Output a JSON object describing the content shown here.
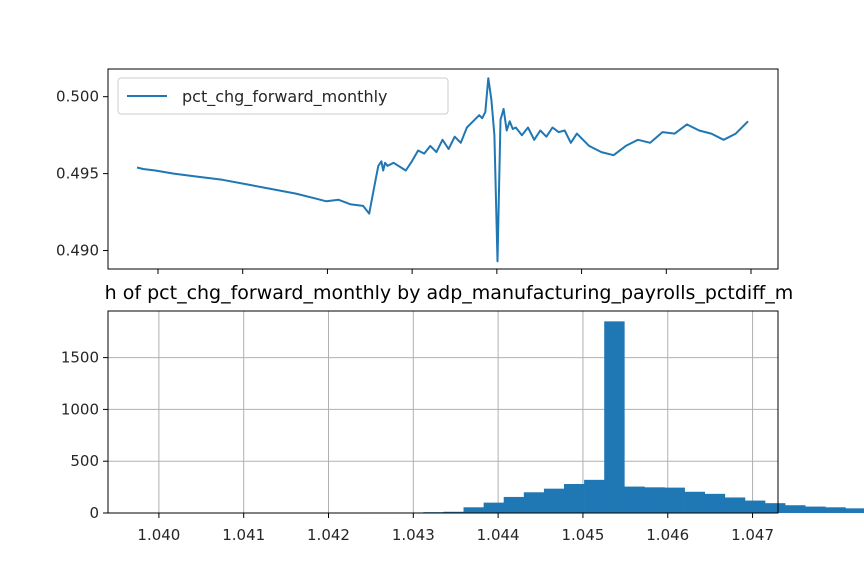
{
  "chart_data": [
    {
      "type": "line",
      "title": "",
      "xlabel": "",
      "ylabel": "",
      "ylim": [
        0.4888,
        0.5018
      ],
      "yticks": [
        0.49,
        0.495,
        0.5
      ],
      "ytick_labels": [
        "0.490",
        "0.495",
        "0.500"
      ],
      "xtick_count": 8,
      "grid": false,
      "legend": {
        "placement": "top-left",
        "entries": [
          "pct_chg_forward_monthly"
        ]
      },
      "series": [
        {
          "name": "pct_chg_forward_monthly",
          "color": "#1f77b4",
          "x": [
            0,
            0.01,
            0.03,
            0.06,
            0.1,
            0.14,
            0.18,
            0.22,
            0.26,
            0.29,
            0.31,
            0.33,
            0.35,
            0.37,
            0.38,
            0.39,
            0.395,
            0.4,
            0.403,
            0.406,
            0.41,
            0.42,
            0.44,
            0.45,
            0.46,
            0.47,
            0.48,
            0.49,
            0.5,
            0.51,
            0.52,
            0.53,
            0.54,
            0.55,
            0.56,
            0.565,
            0.57,
            0.575,
            0.58,
            0.585,
            0.59,
            0.595,
            0.6,
            0.605,
            0.61,
            0.615,
            0.62,
            0.63,
            0.64,
            0.65,
            0.66,
            0.67,
            0.68,
            0.69,
            0.7,
            0.71,
            0.72,
            0.74,
            0.76,
            0.78,
            0.8,
            0.82,
            0.84,
            0.86,
            0.88,
            0.9,
            0.92,
            0.94,
            0.96,
            0.98,
            1.0
          ],
          "values": [
            0.4954,
            0.4953,
            0.4952,
            0.495,
            0.4948,
            0.4946,
            0.4943,
            0.494,
            0.4937,
            0.4934,
            0.4932,
            0.4933,
            0.493,
            0.4929,
            0.4924,
            0.4945,
            0.4955,
            0.4958,
            0.4952,
            0.4957,
            0.4955,
            0.4957,
            0.4952,
            0.4958,
            0.4965,
            0.4963,
            0.4968,
            0.4964,
            0.4972,
            0.4966,
            0.4974,
            0.497,
            0.498,
            0.4984,
            0.4988,
            0.4986,
            0.499,
            0.5012,
            0.4998,
            0.4975,
            0.4893,
            0.4985,
            0.4992,
            0.4978,
            0.4984,
            0.4979,
            0.498,
            0.4975,
            0.498,
            0.4972,
            0.4978,
            0.4974,
            0.498,
            0.4977,
            0.4978,
            0.497,
            0.4976,
            0.4968,
            0.4964,
            0.4962,
            0.4968,
            0.4972,
            0.497,
            0.4977,
            0.4976,
            0.4982,
            0.4978,
            0.4976,
            0.4972,
            0.4976,
            0.4984
          ]
        }
      ]
    },
    {
      "type": "bar",
      "subtype": "histogram",
      "title": "h of pct_chg_forward_monthly by adp_manufacturing_payrolls_pctdiff_m",
      "xlabel": "",
      "ylabel": "",
      "xlim": [
        1.0394,
        1.0473
      ],
      "ylim": [
        0,
        1950
      ],
      "xticks": [
        1.04,
        1.041,
        1.042,
        1.043,
        1.044,
        1.045,
        1.046,
        1.047
      ],
      "xtick_labels": [
        "1.040",
        "1.041",
        "1.042",
        "1.043",
        "1.044",
        "1.045",
        "1.046",
        "1.047"
      ],
      "yticks": [
        0,
        500,
        1000,
        1500
      ],
      "ytick_labels": [
        "0",
        "500",
        "1000",
        "1500"
      ],
      "grid": true,
      "color": "#1f77b4",
      "bin_start": 1.0398,
      "bin_width": 0.000237,
      "values": [
        2,
        3,
        3,
        3,
        3,
        3,
        3,
        3,
        4,
        4,
        4,
        5,
        5,
        5,
        8,
        12,
        55,
        100,
        155,
        200,
        235,
        280,
        320,
        1850,
        255,
        248,
        245,
        205,
        185,
        150,
        120,
        95,
        75,
        62,
        55,
        45
      ]
    }
  ]
}
